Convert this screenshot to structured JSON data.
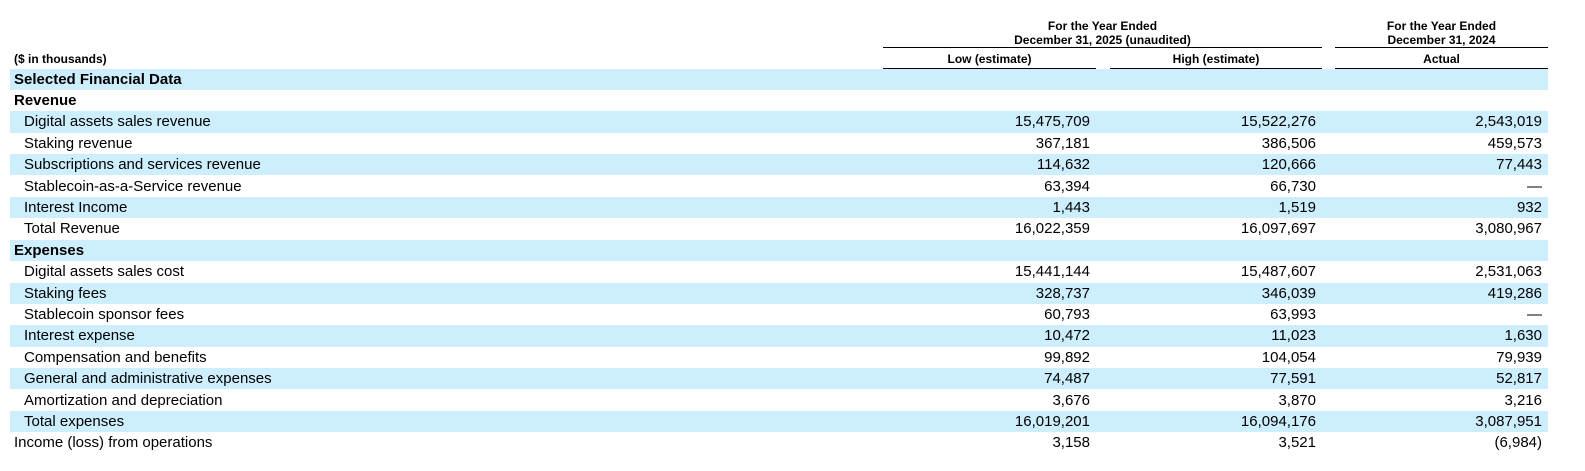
{
  "header": {
    "units": "($ in thousands)",
    "groups": [
      {
        "lines": [
          "For the Year Ended",
          "December 31, 2025 (unaudited)"
        ],
        "columns": [
          "Low (estimate)",
          "High (estimate)"
        ]
      },
      {
        "lines": [
          "For the Year Ended",
          "December 31, 2024"
        ],
        "columns": [
          "Actual"
        ]
      }
    ]
  },
  "table": {
    "title": "Selected Financial Data",
    "sections": [
      {
        "title": "Revenue",
        "rows": [
          {
            "label": "Digital assets sales revenue",
            "values": [
              "15,475,709",
              "15,522,276",
              "2,543,019"
            ]
          },
          {
            "label": "Staking revenue",
            "values": [
              "367,181",
              "386,506",
              "459,573"
            ]
          },
          {
            "label": "Subscriptions and services revenue",
            "values": [
              "114,632",
              "120,666",
              "77,443"
            ]
          },
          {
            "label": "Stablecoin-as-a-Service revenue",
            "values": [
              "63,394",
              "66,730",
              "—"
            ]
          },
          {
            "label": "Interest Income",
            "values": [
              "1,443",
              "1,519",
              "932"
            ]
          },
          {
            "label": "Total Revenue",
            "values": [
              "16,022,359",
              "16,097,697",
              "3,080,967"
            ]
          }
        ]
      },
      {
        "title": "Expenses",
        "rows": [
          {
            "label": "Digital assets sales cost",
            "values": [
              "15,441,144",
              "15,487,607",
              "2,531,063"
            ]
          },
          {
            "label": "Staking fees",
            "values": [
              "328,737",
              "346,039",
              "419,286"
            ]
          },
          {
            "label": "Stablecoin sponsor fees",
            "values": [
              "60,793",
              "63,993",
              "—"
            ]
          },
          {
            "label": "Interest expense",
            "values": [
              "10,472",
              "11,023",
              "1,630"
            ]
          },
          {
            "label": "Compensation and benefits",
            "values": [
              "99,892",
              "104,054",
              "79,939"
            ]
          },
          {
            "label": "General and administrative expenses",
            "values": [
              "74,487",
              "77,591",
              "52,817"
            ]
          },
          {
            "label": "Amortization and depreciation",
            "values": [
              "3,676",
              "3,870",
              "3,216"
            ]
          },
          {
            "label": "Total expenses",
            "values": [
              "16,019,201",
              "16,094,176",
              "3,087,951"
            ]
          }
        ]
      }
    ],
    "footer_row": {
      "label": "Income (loss) from operations",
      "values": [
        "3,158",
        "3,521",
        "(6,984)"
      ]
    }
  }
}
